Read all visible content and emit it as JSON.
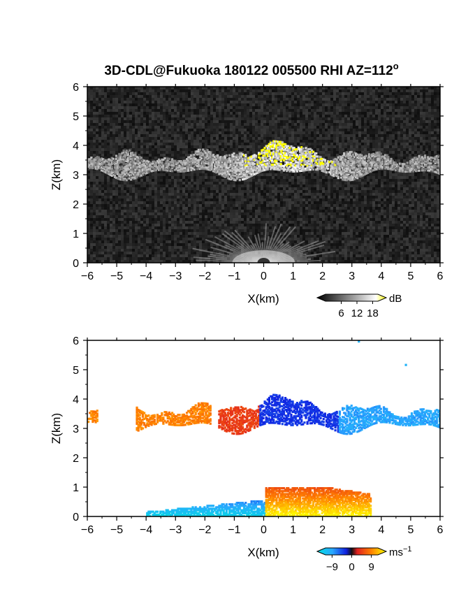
{
  "title": "3D-CDL@Fukuoka 180122 005500 RHI AZ=112",
  "title_superscript": "o",
  "chart_data": [
    {
      "type": "heatmap",
      "name": "reflectivity-panel",
      "xlabel": "X(km)",
      "ylabel": "Z(km)",
      "xlim": [
        -6,
        6
      ],
      "ylim": [
        0,
        6
      ],
      "xticks": [
        -6,
        -5,
        -4,
        -3,
        -2,
        -1,
        0,
        1,
        2,
        3,
        4,
        5,
        6
      ],
      "yticks": [
        0,
        1,
        2,
        3,
        4,
        5,
        6
      ],
      "colorbar": {
        "unit": "dB",
        "ticks": [
          6,
          12,
          18
        ],
        "range": [
          0,
          20
        ],
        "colors": [
          "#000000",
          "#ffffff",
          "#ffff00"
        ]
      },
      "cloud_layer": {
        "x_range": [
          -6,
          6
        ],
        "z_range": [
          3.0,
          4.2
        ],
        "peak_dB_near_x": [
          0,
          1.5
        ]
      },
      "near_ground_echo": {
        "x_range": [
          -1.5,
          2
        ],
        "z_range": [
          0,
          1
        ]
      }
    },
    {
      "type": "heatmap",
      "name": "doppler-velocity-panel",
      "xlabel": "X(km)",
      "ylabel": "Z(km)",
      "xlim": [
        -6,
        6
      ],
      "ylim": [
        0,
        6
      ],
      "xticks": [
        -6,
        -5,
        -4,
        -3,
        -2,
        -1,
        0,
        1,
        2,
        3,
        4,
        5,
        6
      ],
      "yticks": [
        0,
        1,
        2,
        3,
        4,
        5,
        6
      ],
      "colorbar": {
        "unit": "ms",
        "unit_superscript": "−1",
        "ticks": [
          "−9",
          "0",
          "9"
        ],
        "range": [
          -12,
          12
        ]
      },
      "cloud_layer": {
        "x_range": [
          -6,
          6
        ],
        "z_range": [
          3.0,
          4.2
        ]
      },
      "boundary_layer": {
        "x_range": [
          -4,
          3.5
        ],
        "z_range": [
          0,
          1.1
        ]
      }
    }
  ]
}
